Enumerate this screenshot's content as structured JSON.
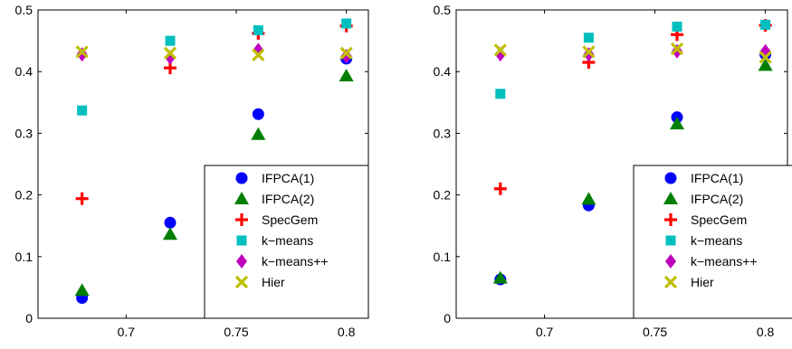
{
  "chart_data": [
    {
      "type": "scatter",
      "xlim": [
        0.66,
        0.81
      ],
      "ylim": [
        0,
        0.5
      ],
      "xticks": [
        "0.7",
        "0.75",
        "0.8"
      ],
      "yticks": [
        "0",
        "0.1",
        "0.2",
        "0.3",
        "0.4",
        "0.5"
      ],
      "grid": false,
      "legend_position": "bottom-right",
      "series": [
        {
          "name": "IFPCA(1)",
          "marker": "circle",
          "color": "#0000ff",
          "x": [
            0.68,
            0.72,
            0.76,
            0.8
          ],
          "y": [
            0.033,
            0.155,
            0.331,
            0.421
          ]
        },
        {
          "name": "IFPCA(2)",
          "marker": "triangle",
          "color": "#007f00",
          "x": [
            0.68,
            0.72,
            0.76,
            0.8
          ],
          "y": [
            0.045,
            0.136,
            0.298,
            0.393
          ]
        },
        {
          "name": "SpecGem",
          "marker": "plus",
          "color": "#ff0000",
          "x": [
            0.68,
            0.72,
            0.76,
            0.8
          ],
          "y": [
            0.194,
            0.406,
            0.462,
            0.474
          ]
        },
        {
          "name": "k−means",
          "marker": "square",
          "color": "#00bfbf",
          "x": [
            0.68,
            0.72,
            0.76,
            0.8
          ],
          "y": [
            0.337,
            0.45,
            0.467,
            0.478
          ]
        },
        {
          "name": "k−means++",
          "marker": "diamond",
          "color": "#bf00bf",
          "x": [
            0.68,
            0.72,
            0.76,
            0.8
          ],
          "y": [
            0.428,
            0.423,
            0.435,
            0.425
          ]
        },
        {
          "name": "Hier",
          "marker": "x",
          "color": "#bfbf00",
          "x": [
            0.68,
            0.72,
            0.76,
            0.8
          ],
          "y": [
            0.432,
            0.43,
            0.427,
            0.43
          ]
        }
      ]
    },
    {
      "type": "scatter",
      "xlim": [
        0.66,
        0.81
      ],
      "ylim": [
        0,
        0.5
      ],
      "xticks": [
        "0.7",
        "0.75",
        "0.8"
      ],
      "yticks": [
        "0",
        "0.1",
        "0.2",
        "0.3",
        "0.4",
        "0.5"
      ],
      "grid": false,
      "legend_position": "bottom-right",
      "series": [
        {
          "name": "IFPCA(1)",
          "marker": "circle",
          "color": "#0000ff",
          "x": [
            0.68,
            0.72,
            0.76,
            0.8
          ],
          "y": [
            0.063,
            0.183,
            0.326,
            0.428
          ]
        },
        {
          "name": "IFPCA(2)",
          "marker": "triangle",
          "color": "#007f00",
          "x": [
            0.68,
            0.72,
            0.76,
            0.8
          ],
          "y": [
            0.065,
            0.193,
            0.315,
            0.41
          ]
        },
        {
          "name": "SpecGem",
          "marker": "plus",
          "color": "#ff0000",
          "x": [
            0.68,
            0.72,
            0.76,
            0.8
          ],
          "y": [
            0.21,
            0.415,
            0.46,
            0.475
          ]
        },
        {
          "name": "k−means",
          "marker": "square",
          "color": "#00bfbf",
          "x": [
            0.68,
            0.72,
            0.76,
            0.8
          ],
          "y": [
            0.364,
            0.455,
            0.473,
            0.476
          ]
        },
        {
          "name": "k−means++",
          "marker": "diamond",
          "color": "#bf00bf",
          "x": [
            0.68,
            0.72,
            0.76,
            0.8
          ],
          "y": [
            0.428,
            0.428,
            0.433,
            0.433
          ]
        },
        {
          "name": "Hier",
          "marker": "x",
          "color": "#bfbf00",
          "x": [
            0.68,
            0.72,
            0.76,
            0.8
          ],
          "y": [
            0.435,
            0.432,
            0.437,
            0.423
          ]
        }
      ]
    }
  ]
}
